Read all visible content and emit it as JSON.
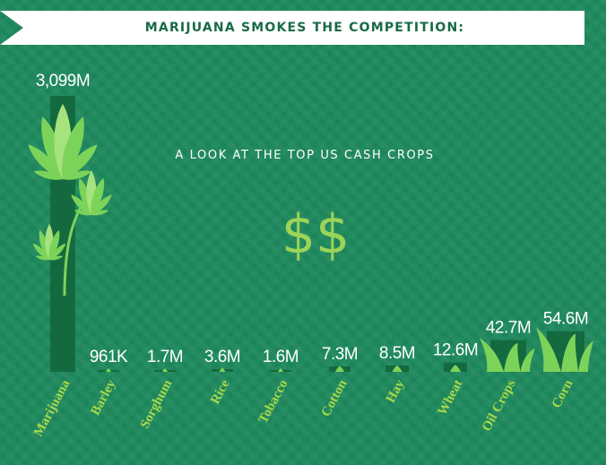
{
  "header": {
    "banner_title": "MARIJUANA SMOKES THE COMPETITION:"
  },
  "subtitle": "A LOOK AT THE TOP US CASH CROPS",
  "decoration": {
    "dollar_signs": "$$"
  },
  "colors": {
    "background": "#1f8a5e",
    "banner": "#ffffff",
    "banner_text": "#176b46",
    "bar": "#146a3f",
    "leaf": "#7cd35a",
    "leaf_light": "#a6e27e",
    "category_label": "#a7d949",
    "value_label": "#ffffff",
    "dollar": "#9bd457"
  },
  "chart_data": {
    "type": "bar",
    "title": "A LOOK AT THE TOP US CASH CROPS",
    "xlabel": "",
    "ylabel": "",
    "grid": false,
    "categories": [
      "Marijuana",
      "Barley",
      "Sorghum",
      "Rice",
      "Tobacco",
      "Cotton",
      "Hay",
      "Wheat",
      "Oil Crops",
      "Corn"
    ],
    "values": [
      3099,
      0.961,
      1.7,
      3.6,
      1.6,
      7.3,
      8.5,
      12.6,
      42.7,
      54.6
    ],
    "value_labels": [
      "3,099M",
      "961K",
      "1.7M",
      "3.6M",
      "1.6M",
      "7.3M",
      "8.5M",
      "12.6M",
      "42.7M",
      "54.6M"
    ],
    "icons": [
      "marijuana-leaf-icon",
      "barley-icon",
      "sorghum-icon",
      "rice-icon",
      "tobacco-icon",
      "cotton-icon",
      "hay-icon",
      "wheat-icon",
      "grass-icon",
      "grass-icon"
    ]
  }
}
